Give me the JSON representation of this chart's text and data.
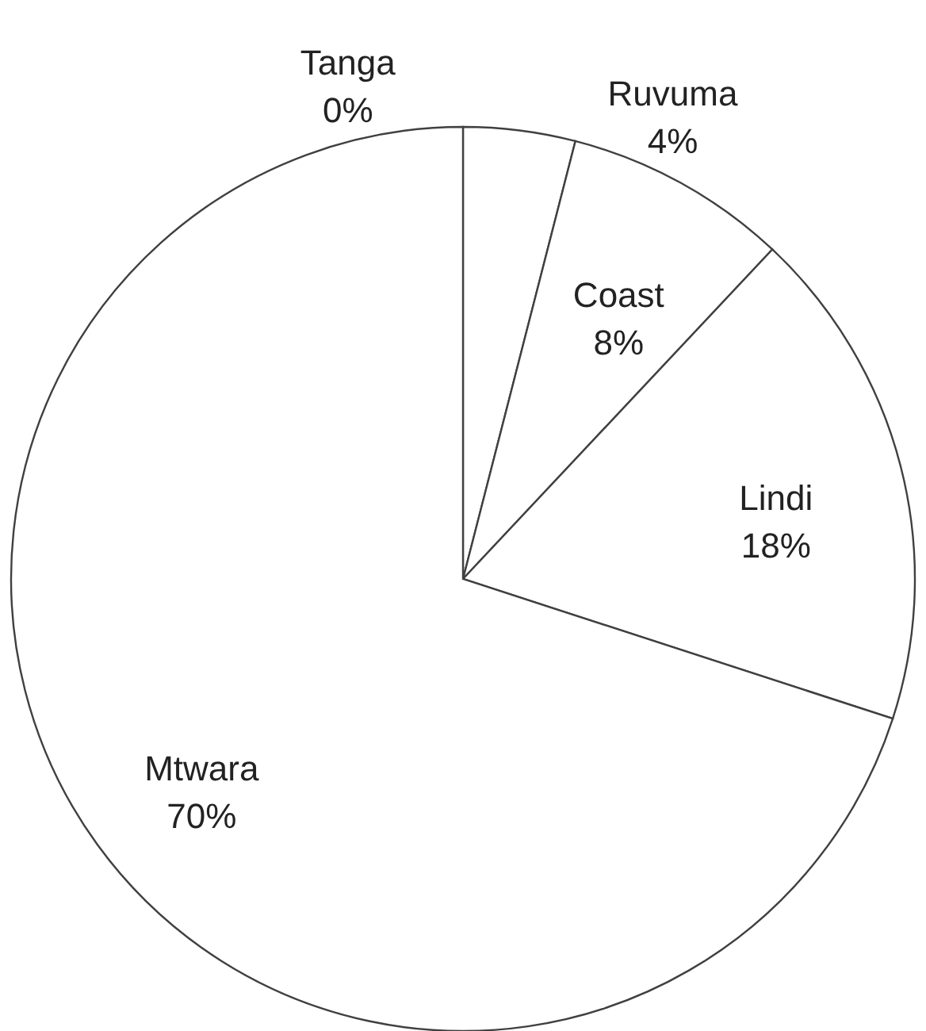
{
  "chart_data": {
    "type": "pie",
    "categories": [
      "Tanga",
      "Ruvuma",
      "Coast",
      "Lindi",
      "Mtwara"
    ],
    "values": [
      0,
      4,
      8,
      18,
      70
    ],
    "value_labels": [
      "0%",
      "4%",
      "8%",
      "18%",
      "70%"
    ],
    "colors": [
      "#ffffff",
      "#ffffff",
      "#ffffff",
      "#ffffff",
      "#ffffff"
    ]
  }
}
